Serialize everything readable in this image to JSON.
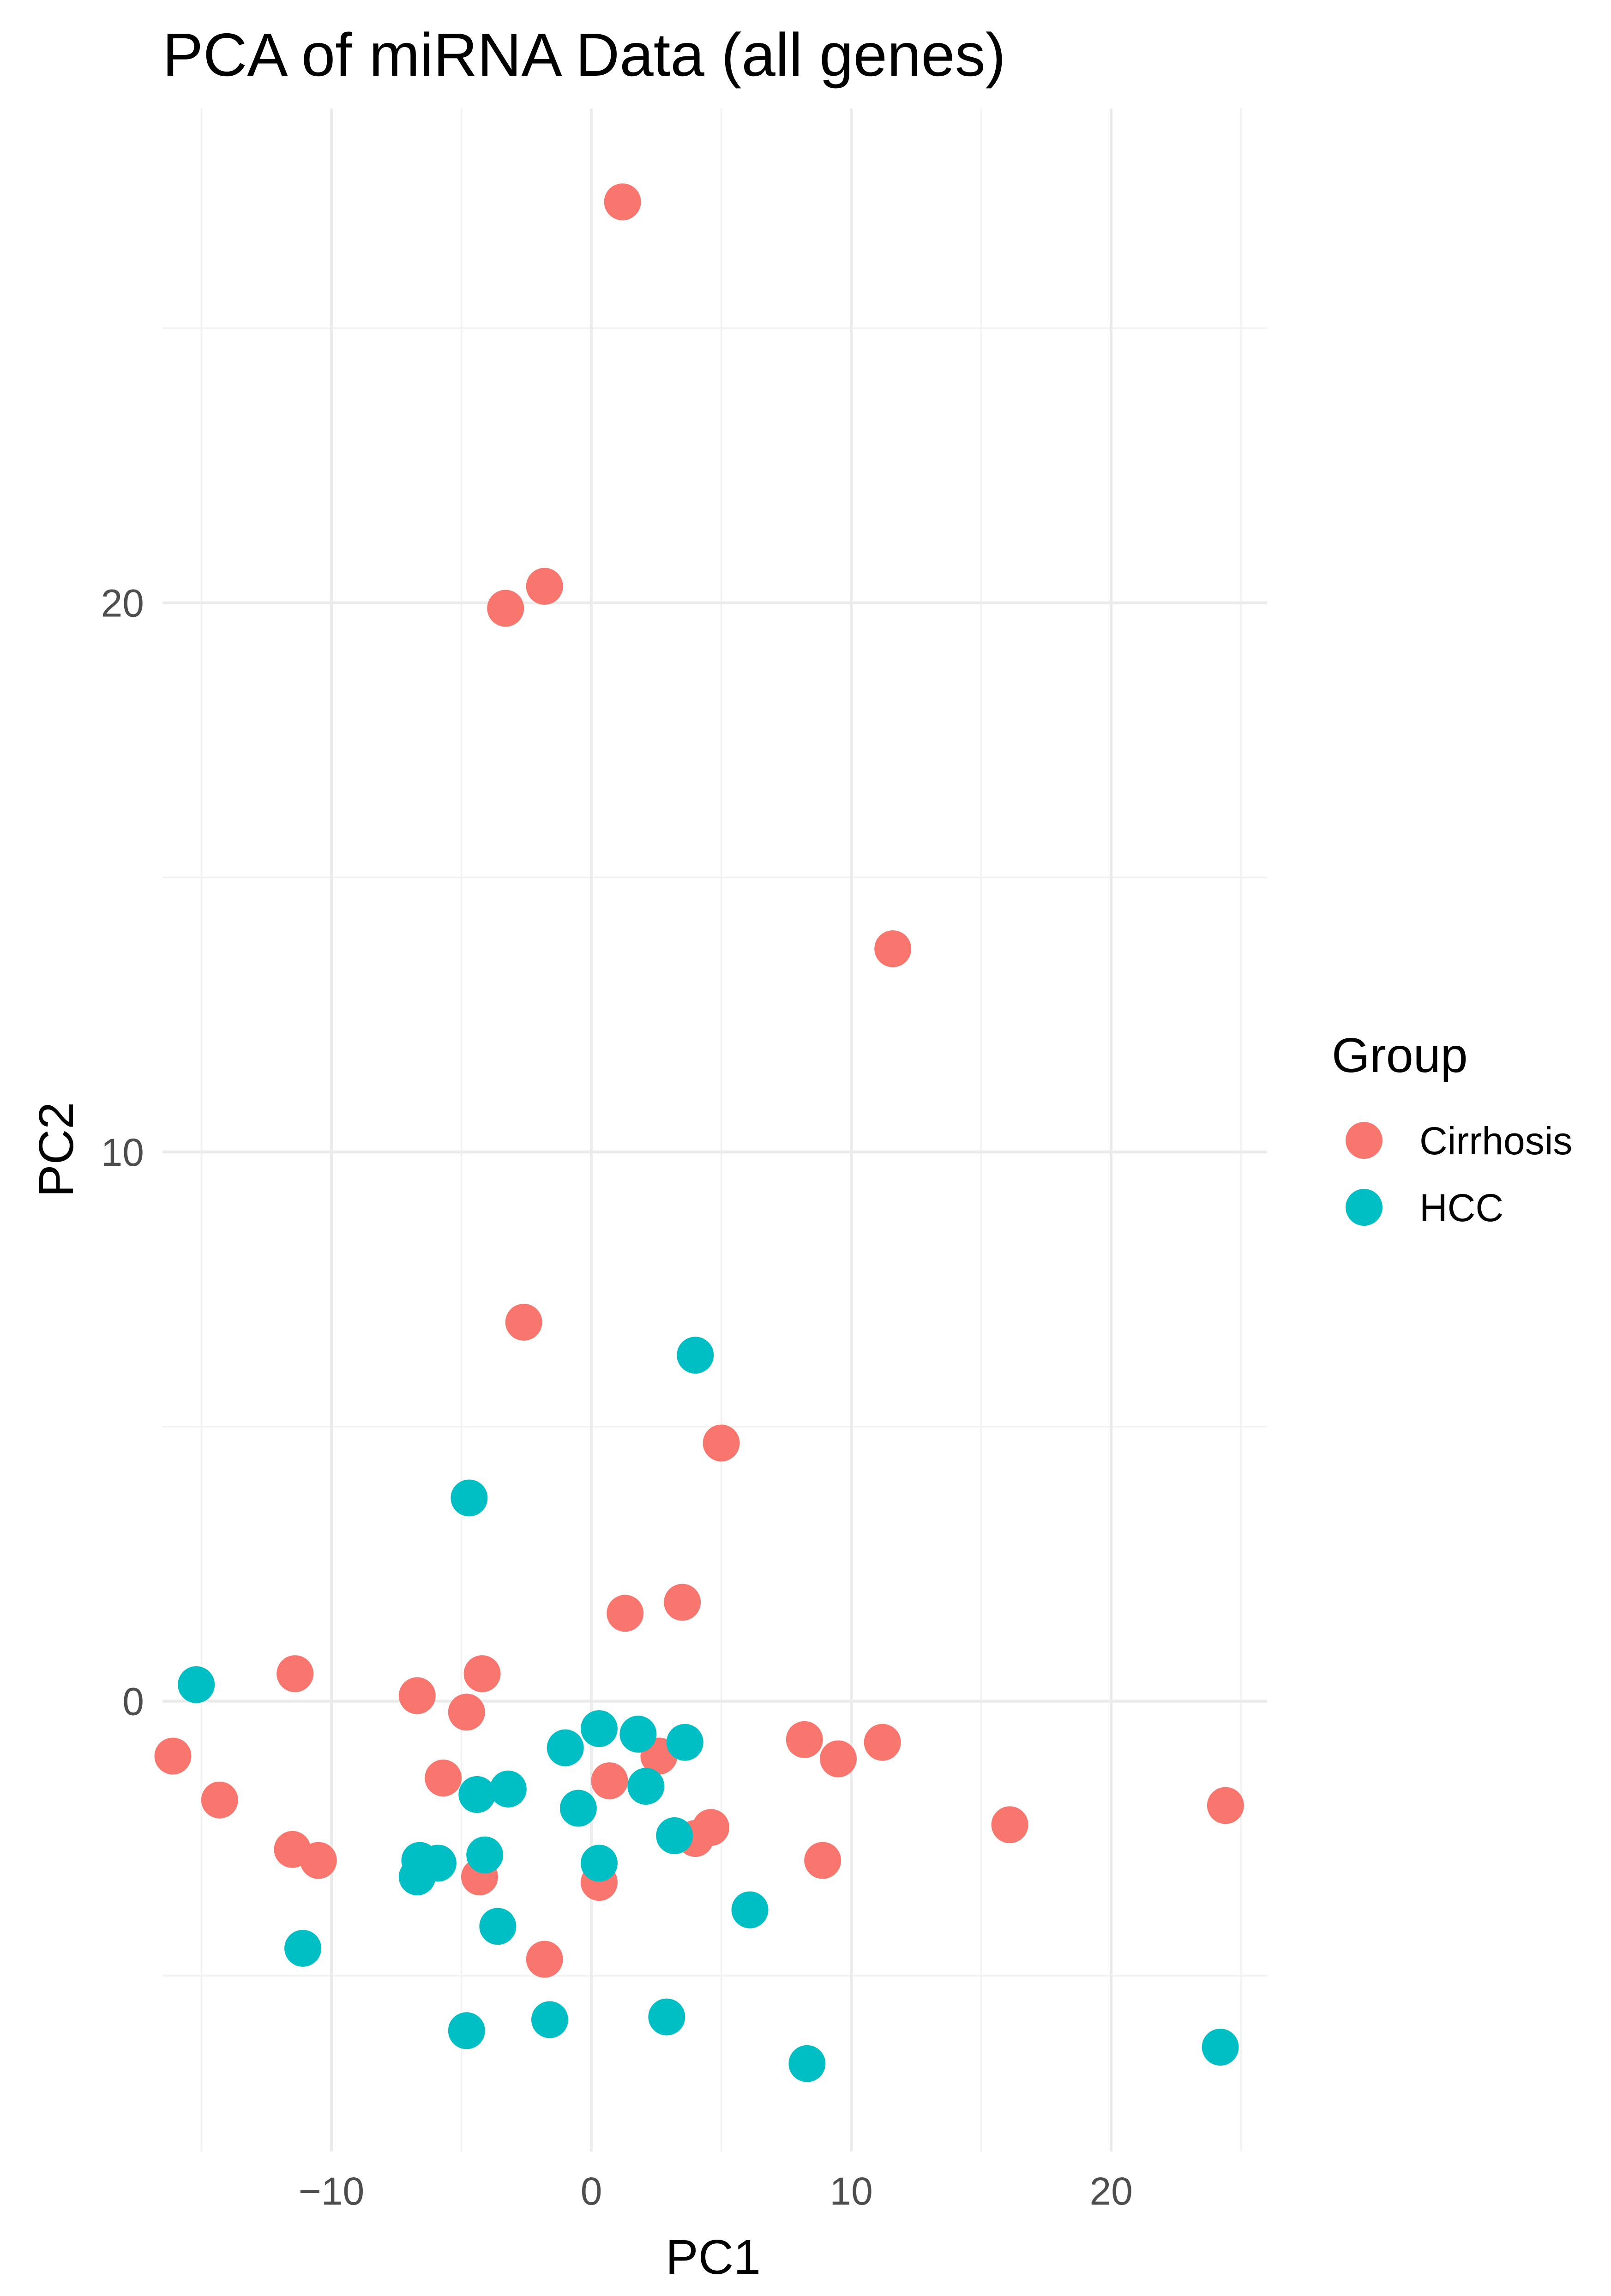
{
  "chart_data": {
    "type": "scatter",
    "title": "PCA of miRNA Data (all genes)",
    "xlabel": "PC1",
    "ylabel": "PC2",
    "xlim": [
      -16.5,
      26
    ],
    "ylim": [
      -8.2,
      29
    ],
    "x_ticks": [
      -10,
      0,
      10,
      20
    ],
    "x_tick_labels": [
      "−10",
      "0",
      "10",
      "20"
    ],
    "y_ticks": [
      0,
      10,
      20
    ],
    "y_tick_labels": [
      "0",
      "10",
      "20"
    ],
    "grid": true,
    "legend": {
      "title": "Group",
      "position": "right"
    },
    "series": [
      {
        "name": "Cirrhosis",
        "color": "#F8766D",
        "points": [
          [
            1.2,
            27.3
          ],
          [
            -1.8,
            20.3
          ],
          [
            -3.3,
            19.9
          ],
          [
            11.6,
            13.7
          ],
          [
            -2.6,
            6.9
          ],
          [
            5.0,
            4.7
          ],
          [
            1.3,
            1.6
          ],
          [
            3.5,
            1.8
          ],
          [
            -11.4,
            0.5
          ],
          [
            -4.2,
            0.5
          ],
          [
            -6.7,
            0.1
          ],
          [
            -4.8,
            -0.2
          ],
          [
            -16.1,
            -1.0
          ],
          [
            -14.3,
            -1.8
          ],
          [
            -5.7,
            -1.4
          ],
          [
            0.7,
            -1.45
          ],
          [
            2.6,
            -1.0
          ],
          [
            8.2,
            -0.7
          ],
          [
            9.5,
            -1.05
          ],
          [
            11.2,
            -0.75
          ],
          [
            -11.5,
            -2.7
          ],
          [
            -10.5,
            -2.9
          ],
          [
            -4.3,
            -3.2
          ],
          [
            0.3,
            -3.3
          ],
          [
            4.6,
            -2.3
          ],
          [
            4.0,
            -2.5
          ],
          [
            8.9,
            -2.9
          ],
          [
            16.1,
            -2.25
          ],
          [
            24.4,
            -1.9
          ],
          [
            -1.8,
            -4.7
          ]
        ]
      },
      {
        "name": "HCC",
        "color": "#00BFC4",
        "points": [
          [
            4.0,
            6.3
          ],
          [
            -4.7,
            3.7
          ],
          [
            -15.2,
            0.3
          ],
          [
            0.3,
            -0.5
          ],
          [
            1.8,
            -0.6
          ],
          [
            3.6,
            -0.75
          ],
          [
            -1.0,
            -0.85
          ],
          [
            2.1,
            -1.55
          ],
          [
            -0.5,
            -1.95
          ],
          [
            -4.4,
            -1.7
          ],
          [
            -3.2,
            -1.6
          ],
          [
            3.2,
            -2.45
          ],
          [
            -6.6,
            -2.9
          ],
          [
            -5.9,
            -2.95
          ],
          [
            -6.7,
            -3.2
          ],
          [
            -4.1,
            -2.8
          ],
          [
            0.3,
            -2.95
          ],
          [
            6.1,
            -3.8
          ],
          [
            -11.1,
            -4.5
          ],
          [
            -3.6,
            -4.1
          ],
          [
            -4.8,
            -6.0
          ],
          [
            -1.6,
            -5.8
          ],
          [
            2.9,
            -5.75
          ],
          [
            8.3,
            -6.6
          ],
          [
            24.2,
            -6.3
          ]
        ]
      }
    ]
  }
}
